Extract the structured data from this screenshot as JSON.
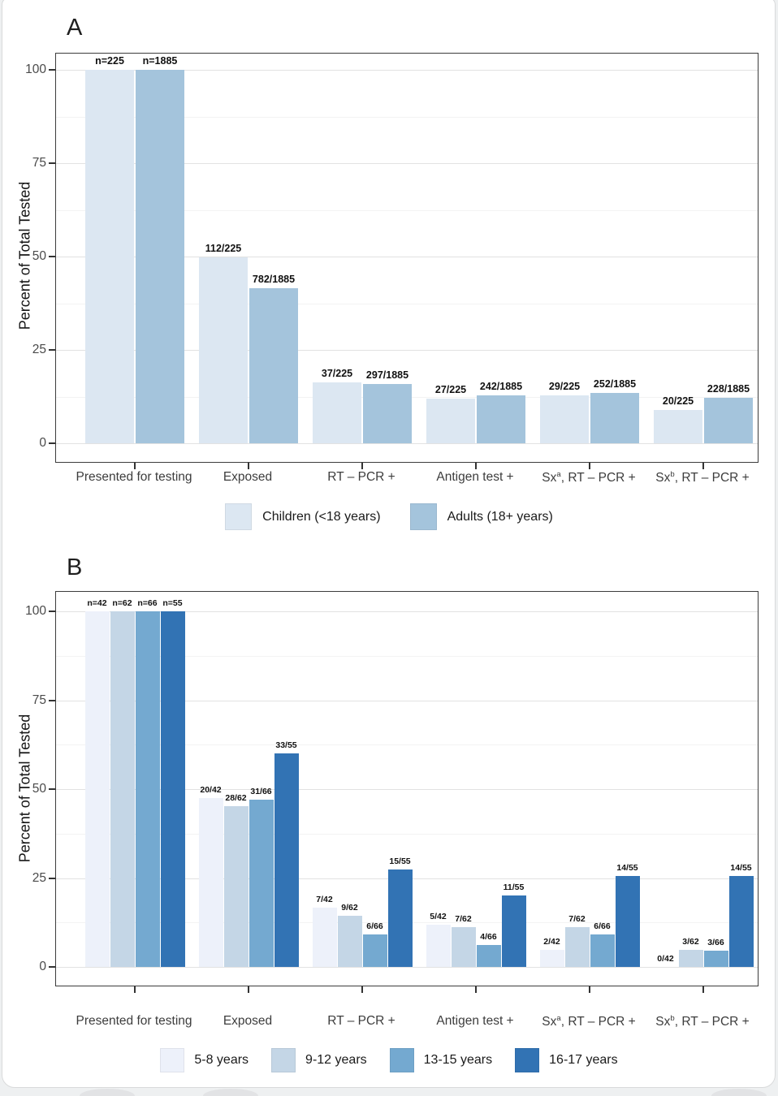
{
  "figure": {
    "ylabel": "Percent of Total Tested",
    "background": "#ffffff",
    "panel_border_color": "#3c3c3c",
    "major_grid_color": "#e2e2e2",
    "minor_grid_color": "#f3f3f3"
  },
  "chart_data": [
    {
      "type": "bar",
      "panel_label": "A",
      "ylabel": "Percent of Total Tested",
      "ylim": [
        0,
        100
      ],
      "yticks": [
        0,
        25,
        50,
        75,
        100
      ],
      "grid": "horizontal major+minor",
      "legend_position": "bottom",
      "categories": [
        "Presented for testing",
        "Exposed",
        "RT – PCR +",
        "Antigen test +",
        "Sx^a, RT – PCR +",
        "Sx^b, RT – PCR +"
      ],
      "series": [
        {
          "name": "Children (<18 years)",
          "color": "#dce7f2",
          "values": [
            100,
            49.8,
            16.4,
            12.0,
            12.9,
            8.9
          ],
          "labels": [
            "n=225",
            "112/225",
            "37/225",
            "27/225",
            "29/225",
            "20/225"
          ]
        },
        {
          "name": "Adults (18+ years)",
          "color": "#a4c4dc",
          "values": [
            100,
            41.5,
            15.8,
            12.8,
            13.4,
            12.1
          ],
          "labels": [
            "n=1885",
            "782/1885",
            "297/1885",
            "242/1885",
            "252/1885",
            "228/1885"
          ]
        }
      ]
    },
    {
      "type": "bar",
      "panel_label": "B",
      "ylabel": "Percent of Total Tested",
      "ylim": [
        0,
        100
      ],
      "yticks": [
        0,
        25,
        50,
        75,
        100
      ],
      "grid": "horizontal major+minor",
      "legend_position": "bottom",
      "categories": [
        "Presented for testing",
        "Exposed",
        "RT – PCR +",
        "Antigen test +",
        "Sx^a, RT – PCR +",
        "Sx^b, RT – PCR +"
      ],
      "series": [
        {
          "name": "5-8 years",
          "color": "#edf1fa",
          "values": [
            100,
            47.6,
            16.7,
            11.9,
            4.8,
            0
          ],
          "labels": [
            "n=42",
            "20/42",
            "7/42",
            "5/42",
            "2/42",
            "0/42"
          ]
        },
        {
          "name": "9-12 years",
          "color": "#c4d6e6",
          "values": [
            100,
            45.2,
            14.5,
            11.3,
            11.3,
            4.8
          ],
          "labels": [
            "n=62",
            "28/62",
            "9/62",
            "7/62",
            "7/62",
            "3/62"
          ]
        },
        {
          "name": "13-15 years",
          "color": "#74a9d0",
          "values": [
            100,
            47.0,
            9.1,
            6.1,
            9.1,
            4.5
          ],
          "labels": [
            "n=66",
            "31/66",
            "6/66",
            "4/66",
            "6/66",
            "3/66"
          ]
        },
        {
          "name": "16-17 years",
          "color": "#3273b4",
          "values": [
            100,
            60.0,
            27.3,
            20.0,
            25.5,
            25.5
          ],
          "labels": [
            "n=55",
            "33/55",
            "15/55",
            "11/55",
            "14/55",
            "14/55"
          ]
        }
      ]
    }
  ]
}
